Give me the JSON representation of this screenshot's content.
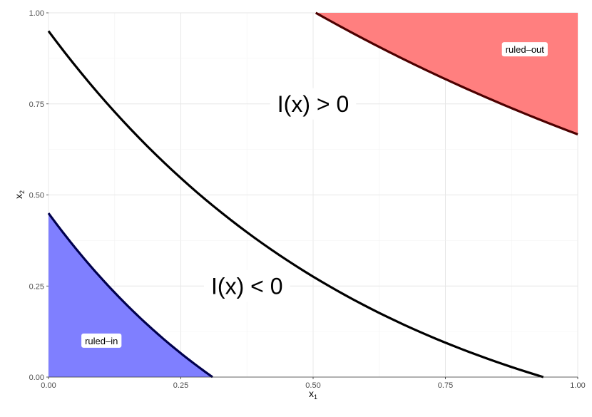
{
  "chart_data": {
    "type": "area",
    "xlabel": "x",
    "xlabel_sub": "1",
    "ylabel": "x",
    "ylabel_sub": "2",
    "xlim": [
      0,
      1
    ],
    "ylim": [
      0,
      1
    ],
    "x_ticks": [
      "0.00",
      "0.25",
      "0.50",
      "0.75",
      "1.00"
    ],
    "y_ticks": [
      "0.00",
      "0.25",
      "0.50",
      "0.75",
      "1.00"
    ],
    "grid": true,
    "curve_points": 60,
    "boundaries": [
      {
        "name": "decision-boundary",
        "curve": {
          "x_end": 0.935,
          "y0": 0.95,
          "b": 1.6
        }
      },
      {
        "name": "ruled-in-boundary",
        "curve": {
          "x_end": 0.31,
          "y0": 0.45,
          "b": 2.15
        }
      },
      {
        "name": "ruled-out-boundary",
        "curve": {
          "x_start": 0.505,
          "y0": 1.0,
          "b": 0.82,
          "x_end": 1.0
        }
      }
    ],
    "regions": [
      {
        "name": "ruled-in",
        "label": "ruled–in",
        "color": "#7F7FFF",
        "edge": "#00004D",
        "label_pos": [
          0.1,
          0.1
        ]
      },
      {
        "name": "ruled-out",
        "label": "ruled–out",
        "color": "#FF7F7F",
        "edge": "#4D0000",
        "label_pos": [
          0.9,
          0.9
        ]
      }
    ],
    "annotations": [
      {
        "name": "positive-region-label",
        "text": "I(x) > 0",
        "at": [
          0.5,
          0.75
        ]
      },
      {
        "name": "negative-region-label",
        "text": "I(x) < 0",
        "at": [
          0.375,
          0.25
        ]
      }
    ]
  }
}
